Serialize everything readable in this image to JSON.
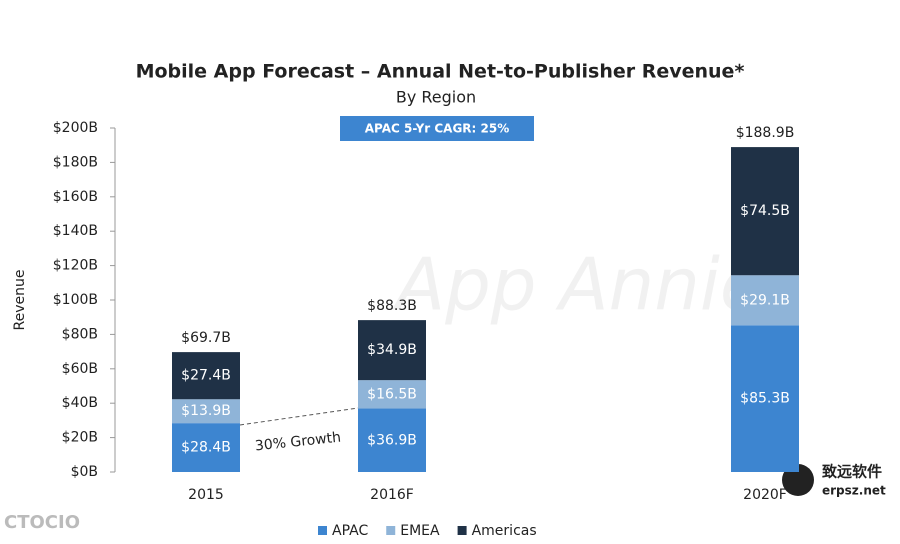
{
  "chart_data": {
    "type": "stacked_bar",
    "title": "Mobile App Forecast – Annual Net-to-Publisher Revenue*",
    "subtitle": "By Region",
    "y_label": "Revenue",
    "categories": [
      "2015",
      "2016F",
      "2020F"
    ],
    "series": [
      {
        "name": "APAC",
        "color": "#3d85d0",
        "values": [
          28.4,
          36.9,
          85.3
        ],
        "value_labels": [
          "$28.4B",
          "$36.9B",
          "$85.3B"
        ]
      },
      {
        "name": "EMEA",
        "color": "#8fb4d8",
        "values": [
          13.9,
          16.5,
          29.1
        ],
        "value_labels": [
          "$13.9B",
          "$16.5B",
          "$29.1B"
        ]
      },
      {
        "name": "Americas",
        "color": "#1f3146",
        "values": [
          27.4,
          34.9,
          74.5
        ],
        "value_labels": [
          "$27.4B",
          "$34.9B",
          "$74.5B"
        ]
      }
    ],
    "totals": {
      "values": [
        69.7,
        88.3,
        188.9
      ],
      "value_labels": [
        "$69.7B",
        "$88.3B",
        "$188.9B"
      ]
    },
    "ylim": [
      0,
      200
    ],
    "yticks": [
      {
        "value": 0,
        "label": "$0B"
      },
      {
        "value": 20,
        "label": "$20B"
      },
      {
        "value": 40,
        "label": "$40B"
      },
      {
        "value": 60,
        "label": "$60B"
      },
      {
        "value": 80,
        "label": "$80B"
      },
      {
        "value": 100,
        "label": "$100B"
      },
      {
        "value": 120,
        "label": "$120B"
      },
      {
        "value": 140,
        "label": "$140B"
      },
      {
        "value": 160,
        "label": "$160B"
      },
      {
        "value": 180,
        "label": "$180B"
      },
      {
        "value": 200,
        "label": "$200B"
      }
    ],
    "annotations": [
      "APAC 5-Yr CAGR: 25%",
      "30% Growth"
    ],
    "watermarks": [
      "App Annie",
      "CTOCIO",
      "致远软件",
      "erpsz.net"
    ],
    "legend": "bottom"
  }
}
